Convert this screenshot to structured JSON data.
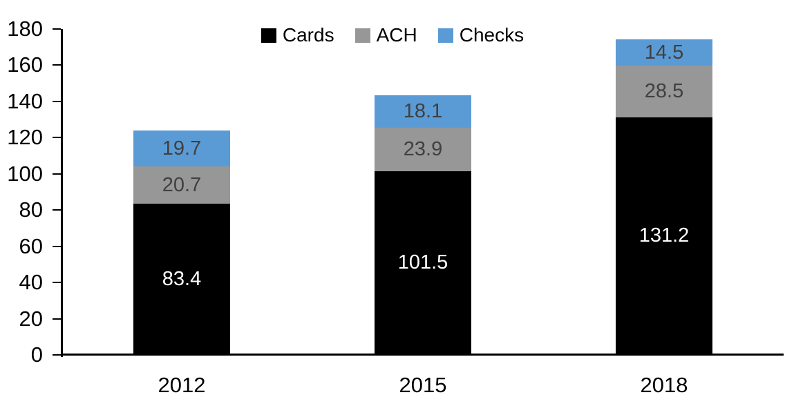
{
  "chart_data": {
    "type": "bar",
    "stacked": true,
    "title": "",
    "xlabel": "",
    "ylabel": "",
    "categories": [
      "2012",
      "2015",
      "2018"
    ],
    "series": [
      {
        "name": "Cards",
        "color": "#000000",
        "label_color": "#ffffff",
        "values": [
          83.4,
          101.5,
          131.2
        ]
      },
      {
        "name": "ACH",
        "color": "#979797",
        "label_color": "#404040",
        "values": [
          20.7,
          23.9,
          28.5
        ]
      },
      {
        "name": "Checks",
        "color": "#5b9bd5",
        "label_color": "#404040",
        "values": [
          19.7,
          18.1,
          14.5
        ]
      }
    ],
    "totals": [
      123.8,
      143.5,
      174.2
    ],
    "ylim": [
      0,
      180
    ],
    "yticks": [
      0,
      20,
      40,
      60,
      80,
      100,
      120,
      140,
      160,
      180
    ],
    "grid": false,
    "legend_position": "top-center",
    "legend_entries": [
      "Cards",
      "ACH",
      "Checks"
    ],
    "axis_color": "#000000",
    "background_color": "#ffffff",
    "data_labels_shown": true
  }
}
